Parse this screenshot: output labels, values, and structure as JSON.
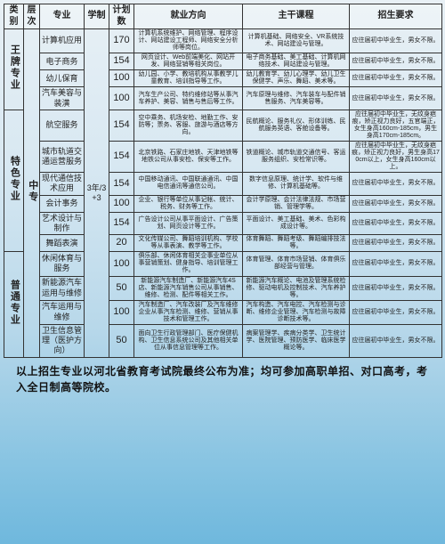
{
  "headers": [
    "类别",
    "层次",
    "专业",
    "学制",
    "计划数",
    "就业方向",
    "主干课程",
    "招生要求"
  ],
  "sections": [
    {
      "groupLabel": "王牌专业",
      "rows": [
        {
          "major": "计算机应用",
          "plan": "170",
          "direction": "计算机系统维护、网络管理、程序设计、网站建设工程师、网络安全分析师等岗位。",
          "courses": "计算机基础、网络安全、VR系统技术、网站建设与管理。",
          "req": "应往届初中毕业生，男女不限。"
        },
        {
          "major": "电子商务",
          "plan": "154",
          "direction": "网页设计、Web前端美化、网站开发、网络营销等相关岗位。",
          "courses": "电子商务基础、美工基础、计算机网络技术、网站建设与管理。",
          "req": "应往届初中毕业生，男女不限。"
        },
        {
          "major": "幼儿保育",
          "plan": "100",
          "direction": "幼儿园、小学、教培机构从事教学儿童教育、培训指导等工作。",
          "courses": "幼儿教育学、幼儿心理学、幼儿卫生保健学、声乐、舞蹈、美术等。",
          "req": "应往届初中毕业生，男女不限。"
        },
        {
          "major": "汽车美容与装潢",
          "plan": "100",
          "direction": "汽车生产公司、特约维修站等从事汽车养护、美容、销售与售后等工作。",
          "courses": "汽车原理与维修、汽车装车与配件销售服务、汽车美容等。",
          "req": "应往届初中毕业生，男女不限。"
        }
      ]
    },
    {
      "groupLabel": "特色专业",
      "rows": [
        {
          "major": "航空服务",
          "plan": "154",
          "direction": "空中乘务、机场安检、地勤工作、安防等；票务、客服、旅游与酒店等方向。",
          "courses": "民航概论、服务礼仪、形体训练、民航服务英语、客舱设备等。",
          "req": "应往届初中毕业生，无纹身疤痕，矫正视力良好，五官端正，女生身高160cm-185cm，男生身高170cm-185cm。"
        },
        {
          "major": "城市轨道交通运营服务",
          "plan": "154",
          "direction": "北京铁路、石家庄地铁、天津地铁等地铁公司从事安检、保安等工作。",
          "courses": "铁道概论、城市轨道交通信号、客运服务组织、安检常识等。",
          "req": "应往届初中毕业生，无纹身疤痕，矫正视力良好，男生身高170cm以上，女生身高160cm以上。"
        },
        {
          "major": "现代通信技术应用",
          "plan": "154",
          "direction": "中国移动通讯、中国联通通讯、中国电信通讯等通信公司。",
          "courses": "数字信息原理、统计学、软件与维修、计算机基础等。",
          "req": "应往届初中毕业生，男女不限。"
        },
        {
          "major": "会计事务",
          "plan": "100",
          "direction": "企业、银行等单位从事记帐、统计、税务、财务等工作。",
          "courses": "会计学原理、会计法律法规、市场营销、管理学等。",
          "req": "应往届初中毕业生，男女不限。"
        },
        {
          "major": "艺术设计与制作",
          "plan": "154",
          "direction": "广告设计公司从事平面设计、广告策划、网页设计等工作。",
          "courses": "平面设计、美工基础、美术、色彩构成设计等。",
          "req": "应往届初中毕业生，男女不限。"
        },
        {
          "major": "舞蹈表演",
          "plan": "20",
          "direction": "文化传媒公司、舞蹈培训机构、学校等从事表演、教学等工作。",
          "courses": "体育舞蹈、舞蹈考级、舞蹈编排技法等。",
          "req": "应往届初中毕业生，男女不限。"
        }
      ]
    },
    {
      "groupLabel": "普通专业",
      "rows": [
        {
          "major": "休闲体育与服务",
          "plan": "100",
          "direction": "俱乐部、休闲体育相关企事业单位从事营销策划、健身指导、培训管理工作。",
          "courses": "体育管理、体育市场营销、体育俱乐部经营与管理。",
          "req": "应往届初中毕业生，男女不限。"
        },
        {
          "major": "新能源汽车运用与维修",
          "plan": "50",
          "direction": "新能源汽车制造厂、新能源汽车4S店、新能源汽车销售公司从事销售、维修、检测、配件等相关工作。",
          "courses": "新能源汽车概论、电池及管理系统检修、驱动电机及控制技术、汽车养护等。",
          "req": "应往届初中毕业生，男女不限。"
        },
        {
          "major": "汽车运用与维修",
          "plan": "100",
          "direction": "汽车制造厂、汽车改装厂及汽车维修企业从事汽车检测、维修、营销从事技术和管理工作。",
          "courses": "汽车构造、汽车电控、汽车检测与诊断、维修企业管理、汽车检测与故障诊断技术等。",
          "req": "应往届初中毕业生，男女不限。"
        },
        {
          "major": "卫生信息管理（医护方向）",
          "plan": "50",
          "direction": "面向卫生行政管理部门、医疗保健机构、卫生信息系统公司及其他相关单位从事信息管理等工作。",
          "courses": "病案管理学、疾病分类学、卫生统计学、医院管理、预防医学、临床医学概论等。",
          "req": "应往届初中毕业生，男女不限。"
        }
      ]
    }
  ],
  "tierLabel": "中专",
  "studyLabel": "3年/3+3",
  "footer": "以上招生专业以河北省教育考试院最终公布为准；均可参加高职单招、对口高考，考入全日制高等院校。"
}
